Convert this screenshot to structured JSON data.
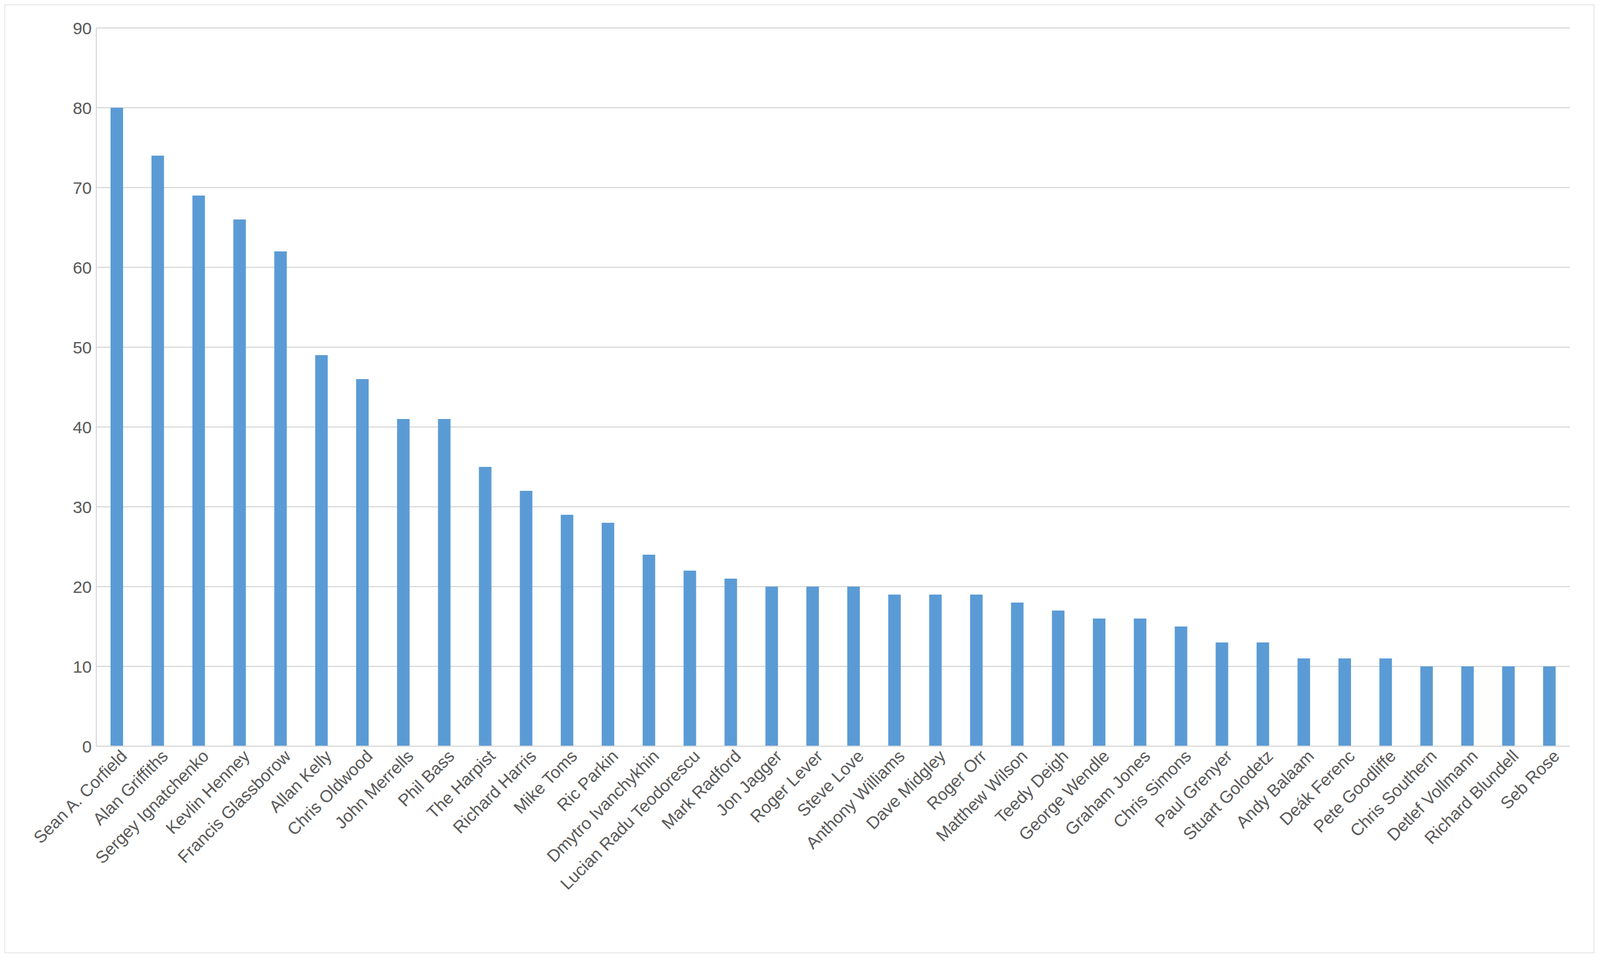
{
  "chart_data": {
    "type": "bar",
    "categories": [
      "Sean A. Corfield",
      "Alan Griffiths",
      "Sergey Ignatchenko",
      "Kevlin Henney",
      "Francis Glassborow",
      "Allan Kelly",
      "Chris Oldwood",
      "John Merrells",
      "Phil Bass",
      "The Harpist",
      "Richard Harris",
      "Mike Toms",
      "Ric Parkin",
      "Dmytro Ivanchykhin",
      "Lucian Radu Teodorescu",
      "Mark Radford",
      "Jon Jagger",
      "Roger Lever",
      "Steve Love",
      "Anthony Williams",
      "Dave Midgley",
      "Roger Orr",
      "Matthew Wilson",
      "Teedy Deigh",
      "George Wendle",
      "Graham Jones",
      "Chris Simons",
      "Paul Grenyer",
      "Stuart Golodetz",
      "Andy Balaam",
      "Deák Ferenc",
      "Pete Goodliffe",
      "Chris Southern",
      "Detlef Vollmann",
      "Richard Blundell",
      "Seb Rose"
    ],
    "values": [
      80,
      74,
      69,
      66,
      62,
      49,
      46,
      41,
      41,
      35,
      32,
      29,
      28,
      24,
      22,
      21,
      20,
      20,
      20,
      19,
      19,
      19,
      18,
      17,
      16,
      16,
      15,
      13,
      13,
      11,
      11,
      11,
      10,
      10,
      10,
      10
    ],
    "color": "#5b9bd5",
    "ylim": [
      0,
      90
    ],
    "yticks": [
      0,
      10,
      20,
      30,
      40,
      50,
      60,
      70,
      80,
      90
    ],
    "grid": true
  }
}
